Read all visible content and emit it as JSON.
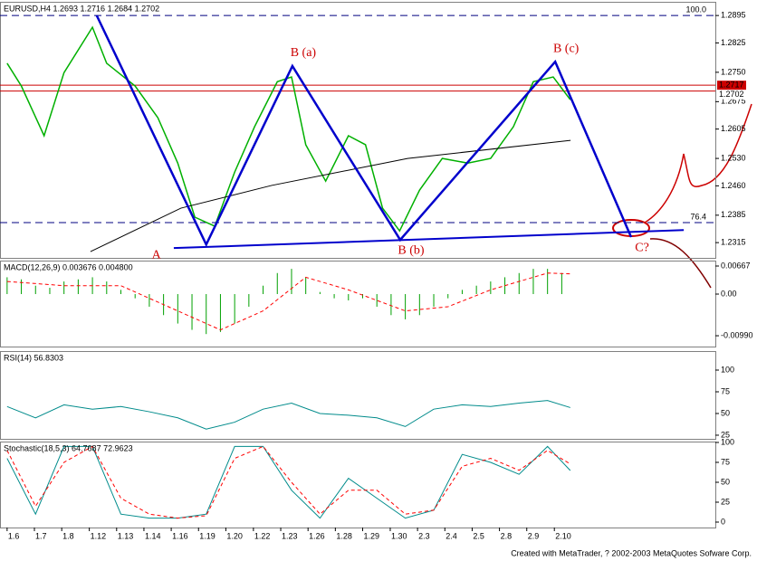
{
  "chart_data": [
    {
      "type": "line",
      "title": "EURUSD,H4 1.2693 1.2716 1.2684 1.2702",
      "xlim": [
        -0.25,
        24.9
      ],
      "ylim": [
        1.2276,
        1.293
      ],
      "yticks": [
        1.2895,
        1.2825,
        {
          "value": 1.275,
          "label": "1.2750"
        },
        1.2675,
        1.2605,
        {
          "value": 1.253,
          "label": "1.2530"
        },
        {
          "value": 1.246,
          "label": "1.2460"
        },
        1.2385,
        1.2315
      ],
      "series": [
        {
          "color": "#00b000",
          "width": 1.5,
          "x": [
            0,
            0.5,
            1.3,
            2,
            3,
            3.5,
            4.5,
            5.3,
            6,
            6.6,
            7.3,
            8,
            8.7,
            9.5,
            10,
            10.5,
            11.2,
            12,
            12.6,
            13.2,
            13.8,
            14.5,
            15.3,
            16.2,
            17,
            17.8,
            18.5,
            19.2,
            19.8
          ],
          "values": [
            1.2773,
            1.2715,
            1.2588,
            1.2749,
            1.2865,
            1.2773,
            1.2715,
            1.2634,
            1.2518,
            1.238,
            1.2357,
            1.2495,
            1.2611,
            1.2726,
            1.2738,
            1.2565,
            1.2472,
            1.2588,
            1.2565,
            1.2403,
            1.2345,
            1.2449,
            1.253,
            1.2518,
            1.253,
            1.2611,
            1.2726,
            1.2738,
            1.268
          ]
        },
        {
          "color": "#000000",
          "width": 1,
          "x": [
            2.93,
            6.11,
            9.3,
            14.08,
            19.81
          ],
          "values": [
            1.2292,
            1.2403,
            1.2461,
            1.253,
            1.2576
          ]
        },
        {
          "color": "#0000cc",
          "width": 2,
          "x": [
            5.86,
            23.79
          ],
          "values": [
            1.2301,
            1.2347
          ]
        },
        {
          "color": "#0000cc",
          "width": 2.5,
          "x": [
            3.15,
            7.0,
            10.03,
            13.82,
            19.27,
            21.94
          ],
          "values": [
            1.2895,
            1.231,
            1.2766,
            1.2322,
            1.2777,
            1.2329
          ],
          "labels": [
            null,
            "A",
            "B (a)",
            "B (b)",
            "B (c)",
            "C?"
          ]
        }
      ],
      "fib_levels": [
        {
          "label": "100.0",
          "price": 1.2895
        },
        {
          "label": "76.4",
          "price": 1.2366
        }
      ],
      "price_lines": [
        1.2717,
        1.2702
      ]
    },
    {
      "type": "line",
      "title": "MACD(12,26,9) 0.003676 0.004800",
      "xlim": [
        -0.25,
        24.9
      ],
      "ylim": [
        -0.01247,
        0.00796
      ],
      "yticks": [
        0.00667,
        {
          "value": 0,
          "label": "0.00"
        },
        {
          "value": -0.0099,
          "label": "-0.00990"
        }
      ],
      "series": [
        {
          "kind": "histogram",
          "color": "#00a000",
          "x": [
            0,
            0.5,
            1,
            1.5,
            2,
            2.5,
            3,
            3.5,
            4,
            4.5,
            5,
            5.5,
            6,
            6.5,
            7,
            7.5,
            8,
            8.5,
            9,
            9.5,
            10,
            10.5,
            11,
            11.5,
            12,
            12.5,
            13,
            13.5,
            14,
            14.5,
            15,
            15.5,
            16,
            16.5,
            17,
            17.5,
            18,
            18.5,
            19,
            19.5
          ],
          "values": [
            0.004,
            0.0035,
            0.002,
            0.0015,
            0.003,
            0.0035,
            0.004,
            0.003,
            0.001,
            -0.001,
            -0.003,
            -0.005,
            -0.007,
            -0.0085,
            -0.0095,
            -0.009,
            -0.007,
            -0.003,
            0.002,
            0.005,
            0.006,
            0.004,
            0.0005,
            -0.001,
            -0.0015,
            -0.001,
            -0.003,
            -0.005,
            -0.006,
            -0.005,
            -0.003,
            -0.001,
            0.001,
            0.002,
            0.003,
            0.004,
            0.005,
            0.006,
            0.006,
            0.005
          ]
        },
        {
          "color": "#ff0000",
          "dash": true,
          "width": 1,
          "x": [
            0,
            2,
            4,
            6,
            7.5,
            9,
            10.5,
            12,
            14,
            15.5,
            17,
            19,
            19.8
          ],
          "values": [
            0.003,
            0.002,
            0.002,
            -0.004,
            -0.0085,
            -0.004,
            0.004,
            0.001,
            -0.004,
            -0.003,
            0.001,
            0.005,
            0.0048
          ]
        }
      ]
    },
    {
      "type": "line",
      "title": "RSI(14) 56.8303",
      "xlim": [
        -0.25,
        24.9
      ],
      "ylim": [
        20.8,
        121.9
      ],
      "yticks": [
        100,
        75,
        50,
        25
      ],
      "series": [
        {
          "color": "#008b8b",
          "width": 1,
          "x": [
            0,
            1,
            2,
            3,
            4,
            5,
            6,
            7,
            8,
            9,
            10,
            11,
            12,
            13,
            14,
            15,
            16,
            17,
            18,
            19,
            19.8
          ],
          "values": [
            58,
            45,
            60,
            55,
            58,
            52,
            45,
            32,
            40,
            55,
            62,
            50,
            48,
            45,
            35,
            55,
            60,
            58,
            62,
            65,
            56.8
          ]
        }
      ]
    },
    {
      "type": "line",
      "title": "Stochastic(18,5,3) 64.7687 72.9623",
      "xlim": [
        -0.25,
        24.9
      ],
      "ylim": [
        -6.8,
        101.1
      ],
      "yticks": [
        100,
        75,
        50,
        25,
        0
      ],
      "xticks": [
        {
          "value": 0,
          "label": "1.6"
        },
        {
          "value": 0.96,
          "label": "1.7"
        },
        {
          "value": 1.92,
          "label": "1.8"
        },
        {
          "value": 2.89,
          "label": "1.12"
        },
        {
          "value": 3.85,
          "label": "1.13"
        },
        {
          "value": 4.81,
          "label": "1.14"
        },
        {
          "value": 5.77,
          "label": "1.16"
        },
        {
          "value": 6.73,
          "label": "1.19"
        },
        {
          "value": 7.69,
          "label": "1.20"
        },
        {
          "value": 8.66,
          "label": "1.22"
        },
        {
          "value": 9.62,
          "label": "1.23"
        },
        {
          "value": 10.58,
          "label": "1.26"
        },
        {
          "value": 11.54,
          "label": "1.28"
        },
        {
          "value": 12.5,
          "label": "1.29"
        },
        {
          "value": 13.47,
          "label": "1.30"
        },
        {
          "value": 14.43,
          "label": "2.3"
        },
        {
          "value": 15.39,
          "label": "2.4"
        },
        {
          "value": 16.35,
          "label": "2.5"
        },
        {
          "value": 17.31,
          "label": "2.8"
        },
        {
          "value": 18.27,
          "label": "2.9"
        },
        {
          "value": 19.24,
          "label": "2.10"
        }
      ],
      "series": [
        {
          "color": "#008b8b",
          "width": 1,
          "x": [
            0,
            1,
            2,
            3,
            4,
            5,
            6,
            7,
            8,
            9,
            10,
            11,
            12,
            13,
            14,
            15,
            16,
            17,
            18,
            19,
            19.8
          ],
          "values": [
            80,
            10,
            95,
            95,
            10,
            5,
            5,
            10,
            95,
            95,
            40,
            5,
            55,
            30,
            5,
            15,
            85,
            75,
            60,
            95,
            64.7687
          ]
        },
        {
          "color": "#ff0000",
          "dash": true,
          "width": 1,
          "x": [
            0,
            1,
            2,
            3,
            4,
            5,
            6,
            7,
            8,
            9,
            10,
            11,
            12,
            13,
            14,
            15,
            16,
            17,
            18,
            19,
            19.8
          ],
          "values": [
            90,
            20,
            75,
            95,
            30,
            10,
            5,
            8,
            80,
            95,
            50,
            10,
            40,
            40,
            10,
            15,
            70,
            80,
            65,
            90,
            72.9623
          ]
        }
      ]
    }
  ],
  "footer": "Created with MetaTrader, ? 2002-2003 MetaQuotes Sofware Corp."
}
